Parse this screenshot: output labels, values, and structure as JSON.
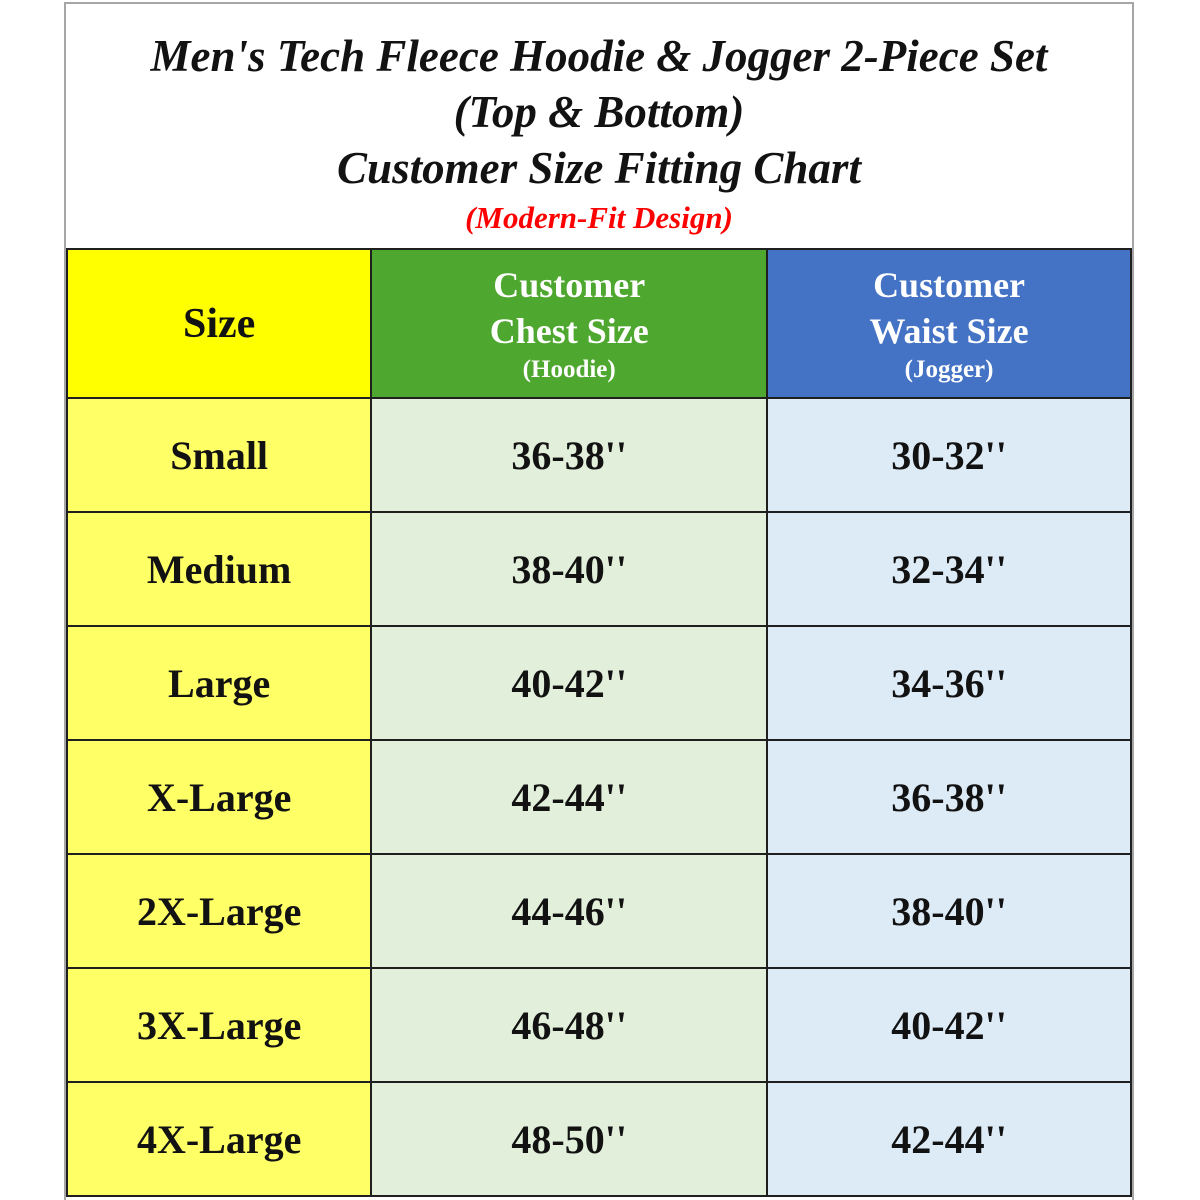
{
  "title": {
    "line1": "Men's Tech Fleece Hoodie & Jogger 2-Piece Set",
    "line2": "(Top & Bottom)",
    "line3": "Customer Size Fitting Chart",
    "line4": "(Modern-Fit Design)"
  },
  "colors": {
    "title_text": "#121212",
    "title_note_red": "#FE0000",
    "header_size_yellow": "#FFFF00",
    "header_chest_green": "#4EA72E",
    "header_waist_blue": "#4472C4",
    "row_size_yellow": "#FFFF66",
    "row_chest_green": "#E2EFDA",
    "row_waist_blue": "#DDEBF7",
    "cell_border": "#1F1F1F",
    "frame_border": "#A6A6A6"
  },
  "table": {
    "columns": [
      {
        "label": "Size"
      },
      {
        "line1": "Customer",
        "line2": "Chest Size",
        "sub": "(Hoodie)"
      },
      {
        "line1": "Customer",
        "line2": "Waist Size",
        "sub": "(Jogger)"
      }
    ],
    "rows": [
      {
        "size": "Small",
        "chest": "36-38''",
        "waist": "30-32''"
      },
      {
        "size": "Medium",
        "chest": "38-40''",
        "waist": "32-34''"
      },
      {
        "size": "Large",
        "chest": "40-42''",
        "waist": "34-36''"
      },
      {
        "size": "X-Large",
        "chest": "42-44''",
        "waist": "36-38''"
      },
      {
        "size": "2X-Large",
        "chest": "44-46''",
        "waist": "38-40''"
      },
      {
        "size": "3X-Large",
        "chest": "46-48''",
        "waist": "40-42''"
      },
      {
        "size": "4X-Large",
        "chest": "48-50''",
        "waist": "42-44''"
      }
    ]
  }
}
